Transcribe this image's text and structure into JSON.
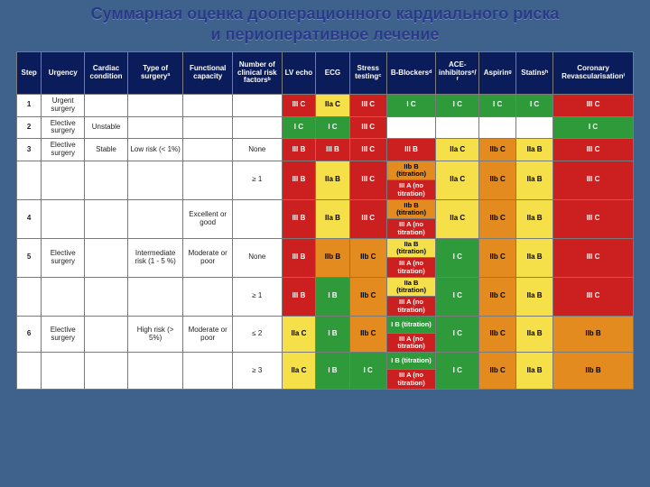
{
  "title_line1": "Суммарная оценка дооперационного кардиального риска",
  "title_line2": "и периоперативное лечение",
  "colors": {
    "header_bg": "#0a1c5a",
    "red": "#cc1f1f",
    "green": "#2e9a3a",
    "orange": "#e38b1e",
    "yellow": "#f5e04a",
    "page_bg": "#3e628c",
    "title_color": "#2a3a8a"
  },
  "headers": [
    "Step",
    "Urgency",
    "Cardiac condition",
    "Type of surgeryª",
    "Functional capacity",
    "Number of clinical risk factorsᵇ",
    "LV echo",
    "ECG",
    "Stress testingᶜ",
    "B-Blockersᵈ",
    "ACE-inhibitorsᵉ/ᶠ",
    "Aspirinᵍ",
    "Statinsʰ",
    "Coronary Revascularisationⁱ"
  ],
  "col_widths_pct": [
    4,
    7,
    7,
    9,
    8,
    8,
    5.5,
    5.5,
    6,
    8,
    7,
    6,
    6,
    13
  ],
  "rows": [
    {
      "step": "1",
      "labels": {
        "urgency": "Urgent surgery",
        "cardiac": "",
        "type": "",
        "fc": "",
        "nrf": ""
      },
      "cells": [
        [
          "III C",
          "red"
        ],
        [
          "IIa C",
          "yellow"
        ],
        [
          "III C",
          "red"
        ],
        [
          "I C",
          "green"
        ],
        [
          "I C",
          "green"
        ],
        [
          "I C",
          "green"
        ],
        [
          "I C",
          "green"
        ],
        [
          "III C",
          "red"
        ]
      ]
    },
    {
      "step": "2",
      "labels": {
        "urgency": "Elective surgery",
        "cardiac": "Unstable",
        "type": "",
        "fc": "",
        "nrf": ""
      },
      "cells": [
        [
          "I C",
          "green"
        ],
        [
          "I C",
          "green"
        ],
        [
          "III C",
          "red"
        ],
        [
          "",
          "white"
        ],
        [
          "",
          "white"
        ],
        [
          "",
          "white"
        ],
        [
          "",
          "white"
        ],
        [
          "I C",
          "green"
        ]
      ]
    },
    {
      "step": "3",
      "labels": {
        "urgency": "Elective surgery",
        "cardiac": "Stable",
        "type": "Low risk (< 1%)",
        "fc": "",
        "nrf": "None"
      },
      "cells": [
        [
          "III B",
          "red"
        ],
        [
          "III B",
          "red"
        ],
        [
          "III C",
          "red"
        ],
        [
          "III B",
          "red"
        ],
        [
          "IIa C",
          "yellow"
        ],
        [
          "IIb C",
          "orange"
        ],
        [
          "IIa B",
          "yellow"
        ],
        [
          "III C",
          "red"
        ]
      ]
    },
    {
      "step": "",
      "labels": {
        "urgency": "",
        "cardiac": "",
        "type": "",
        "fc": "",
        "nrf": "≥ 1"
      },
      "pre": [
        [
          "III B",
          "red"
        ],
        [
          "IIa B",
          "yellow"
        ],
        [
          "III C",
          "red"
        ]
      ],
      "split": [
        [
          "IIb B (titration)",
          "orange"
        ],
        [
          "III A (no titration)",
          "red"
        ]
      ],
      "post": [
        [
          "IIa C",
          "yellow"
        ],
        [
          "IIb C",
          "orange"
        ],
        [
          "IIa B",
          "yellow"
        ],
        [
          "III C",
          "red"
        ]
      ]
    },
    {
      "step": "4",
      "labels": {
        "urgency": "",
        "cardiac": "",
        "type": "",
        "fc": "Excellent or good",
        "nrf": ""
      },
      "pre": [
        [
          "III B",
          "red"
        ],
        [
          "IIa B",
          "yellow"
        ],
        [
          "III C",
          "red"
        ]
      ],
      "split": [
        [
          "IIb B (titration)",
          "orange"
        ],
        [
          "III A (no titration)",
          "red"
        ]
      ],
      "post": [
        [
          "IIa C",
          "yellow"
        ],
        [
          "IIb C",
          "orange"
        ],
        [
          "IIa B",
          "yellow"
        ],
        [
          "III C",
          "red"
        ]
      ]
    },
    {
      "step": "5",
      "labels": {
        "urgency": "Elective surgery",
        "cardiac": "",
        "type": "Intermediate risk (1 - 5 %)",
        "fc": "Moderate or poor",
        "nrf": "None"
      },
      "pre": [
        [
          "III B",
          "red"
        ],
        [
          "IIb B",
          "orange"
        ],
        [
          "IIb C",
          "orange"
        ]
      ],
      "split": [
        [
          "IIa B (titration)",
          "yellow"
        ],
        [
          "III A (no titration)",
          "red"
        ]
      ],
      "post": [
        [
          "I C",
          "green"
        ],
        [
          "IIb C",
          "orange"
        ],
        [
          "IIa B",
          "yellow"
        ],
        [
          "III C",
          "red"
        ]
      ]
    },
    {
      "step": "",
      "labels": {
        "urgency": "",
        "cardiac": "",
        "type": "",
        "fc": "",
        "nrf": "≥ 1"
      },
      "pre": [
        [
          "III B",
          "red"
        ],
        [
          "I B",
          "green"
        ],
        [
          "IIb C",
          "orange"
        ]
      ],
      "split": [
        [
          "IIa B (titration)",
          "yellow"
        ],
        [
          "III A (no titration)",
          "red"
        ]
      ],
      "post": [
        [
          "I C",
          "green"
        ],
        [
          "IIb C",
          "orange"
        ],
        [
          "IIa B",
          "yellow"
        ],
        [
          "III C",
          "red"
        ]
      ]
    },
    {
      "step": "6",
      "labels": {
        "urgency": "Elective surgery",
        "cardiac": "",
        "type": "High risk (> 5%)",
        "fc": "Moderate or poor",
        "nrf": "≤ 2"
      },
      "pre": [
        [
          "IIa C",
          "yellow"
        ],
        [
          "I B",
          "green"
        ],
        [
          "IIb C",
          "orange"
        ]
      ],
      "split": [
        [
          "I B (titration)",
          "green"
        ],
        [
          "III A (no titration)",
          "red"
        ]
      ],
      "post": [
        [
          "I C",
          "green"
        ],
        [
          "IIb C",
          "orange"
        ],
        [
          "IIa B",
          "yellow"
        ],
        [
          "IIb B",
          "orange"
        ]
      ]
    },
    {
      "step": "",
      "labels": {
        "urgency": "",
        "cardiac": "",
        "type": "",
        "fc": "",
        "nrf": "≥ 3"
      },
      "pre": [
        [
          "IIa C",
          "yellow"
        ],
        [
          "I B",
          "green"
        ],
        [
          "I C",
          "green"
        ]
      ],
      "split": [
        [
          "I B (titration)",
          "green"
        ],
        [
          "III A (no titration)",
          "red"
        ]
      ],
      "post": [
        [
          "I C",
          "green"
        ],
        [
          "IIb C",
          "orange"
        ],
        [
          "IIa B",
          "yellow"
        ],
        [
          "IIb B",
          "orange"
        ]
      ]
    }
  ]
}
